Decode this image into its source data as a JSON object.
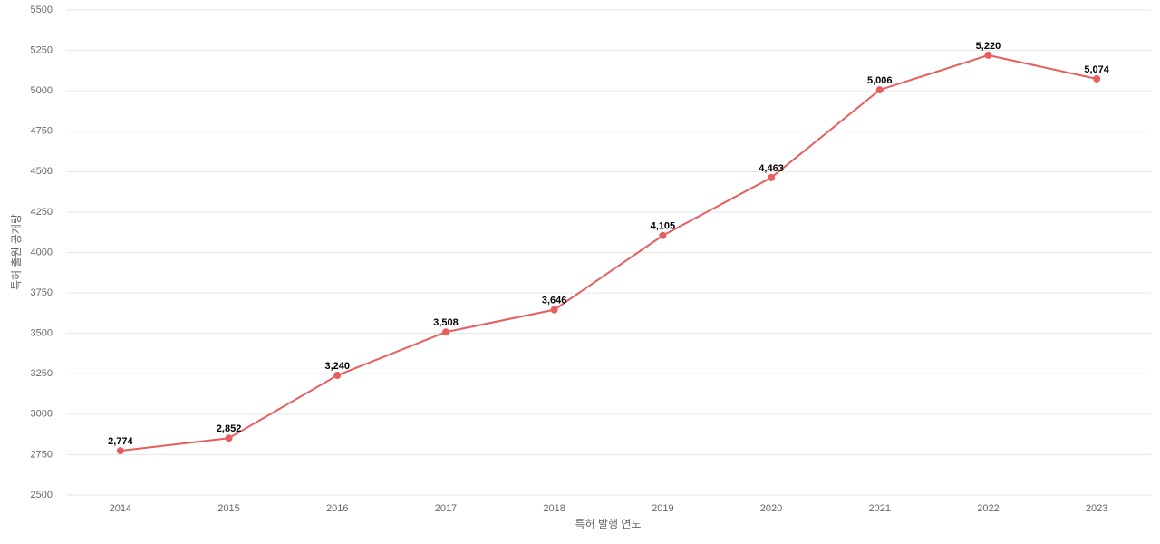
{
  "chart_data": {
    "type": "line",
    "x_label": "특허 발행 연도",
    "y_label": "특허 출원 공개량",
    "categories": [
      "2014",
      "2015",
      "2016",
      "2017",
      "2018",
      "2019",
      "2020",
      "2021",
      "2022",
      "2023"
    ],
    "values": [
      2774,
      2852,
      3240,
      3508,
      3646,
      4105,
      4463,
      5006,
      5220,
      5074
    ],
    "value_labels": [
      "2,774",
      "2,852",
      "3,240",
      "3,508",
      "3,646",
      "4,105",
      "4,463",
      "5,006",
      "5,220",
      "5,074"
    ],
    "color": "#e85d5d",
    "ylim": [
      2500,
      5500
    ],
    "yticks": [
      2500,
      2750,
      3000,
      3250,
      3500,
      3750,
      4000,
      4250,
      4500,
      4750,
      5000,
      5250,
      5500
    ],
    "grid": true
  }
}
